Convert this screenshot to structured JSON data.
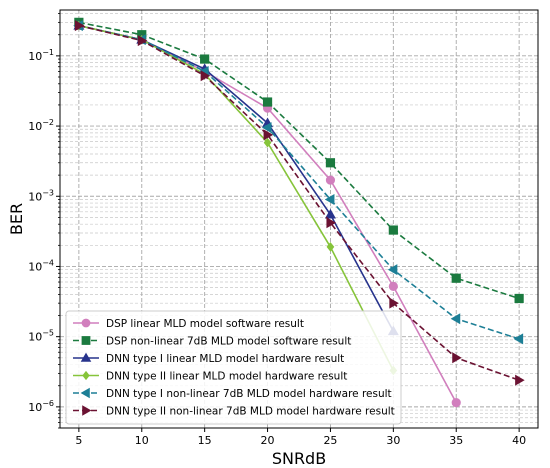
{
  "chart_data": {
    "type": "line",
    "title": "",
    "xlabel": "SNRdB",
    "ylabel": "BER",
    "xlim": [
      3.5,
      41.5
    ],
    "ylim": [
      5e-07,
      0.45
    ],
    "yscale": "log",
    "grid": true,
    "grid_minor": true,
    "legend_position": "lower-left",
    "x_ticks": [
      5,
      10,
      15,
      20,
      25,
      30,
      35,
      40
    ],
    "y_tick_labels": [
      "10^-6",
      "10^-5",
      "10^-4",
      "10^-3",
      "10^-2",
      "10^-1"
    ],
    "series": [
      {
        "name": "DSP linear MLD model software result",
        "color": "#d17fbd",
        "dash": "solid",
        "marker": "circle",
        "x": [
          5,
          10,
          15,
          20,
          25,
          30,
          35
        ],
        "y": [
          0.27,
          0.17,
          0.06,
          0.018,
          0.0017,
          5.2e-05,
          1.15e-06
        ]
      },
      {
        "name": "DSP non-linear 7dB MLD model software result",
        "color": "#1b7a3f",
        "dash": "dashed",
        "marker": "square",
        "x": [
          5,
          10,
          15,
          20,
          25,
          30,
          35,
          40
        ],
        "y": [
          0.3,
          0.2,
          0.09,
          0.022,
          0.003,
          0.00033,
          6.8e-05,
          3.5e-05
        ]
      },
      {
        "name": "DNN type I linear MLD model hardware result",
        "color": "#27338c",
        "dash": "solid",
        "marker": "triangle-up",
        "x": [
          5,
          10,
          15,
          20,
          25,
          30
        ],
        "y": [
          0.27,
          0.17,
          0.065,
          0.011,
          0.00055,
          1.2e-05
        ]
      },
      {
        "name": "DNN type II linear MLD model hardware result",
        "color": "#86c43a",
        "dash": "solid",
        "marker": "diamond",
        "x": [
          5,
          10,
          15,
          20,
          25,
          30
        ],
        "y": [
          0.27,
          0.17,
          0.055,
          0.0058,
          0.00019,
          3.3e-06
        ]
      },
      {
        "name": "DNN type I non-linear 7dB MLD model hardware result",
        "color": "#1d7f96",
        "dash": "dashed",
        "marker": "triangle-left",
        "x": [
          5,
          10,
          15,
          20,
          25,
          30,
          35,
          40
        ],
        "y": [
          0.27,
          0.17,
          0.06,
          0.0095,
          0.0009,
          9e-05,
          1.8e-05,
          9.3e-06
        ]
      },
      {
        "name": "DNN type II non-linear 7dB MLD model hardware result",
        "color": "#6b1232",
        "dash": "dashed",
        "marker": "triangle-right",
        "x": [
          5,
          10,
          15,
          20,
          25,
          30,
          35,
          40
        ],
        "y": [
          0.27,
          0.165,
          0.052,
          0.0075,
          0.00042,
          3e-05,
          5e-06,
          2.4e-06
        ]
      }
    ]
  }
}
